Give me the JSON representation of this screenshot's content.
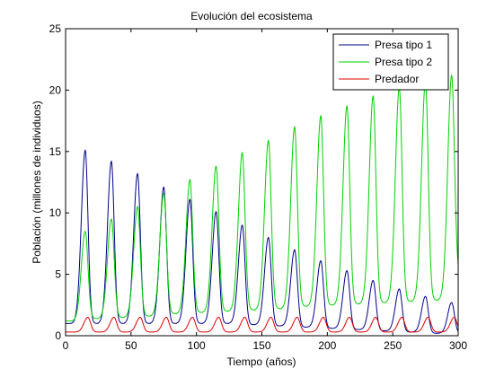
{
  "chart_data": {
    "type": "line",
    "title": "Evolución del ecosistema",
    "xlabel": "Tiempo (años)",
    "ylabel": "Población (millones de individuos)",
    "xlim": [
      0,
      300
    ],
    "ylim": [
      0,
      25
    ],
    "xticks": [
      0,
      50,
      100,
      150,
      200,
      250,
      300
    ],
    "yticks": [
      0,
      5,
      10,
      15,
      20,
      25
    ],
    "grid": false,
    "legend_position": "top-right",
    "series": [
      {
        "name": "Presa tipo 1",
        "color": "#00008b",
        "period": 20,
        "first_peak_x": 15,
        "peaks": [
          15.1,
          14.2,
          13.2,
          12.1,
          11.1,
          10.1,
          9.0,
          8.0,
          7.0,
          6.1,
          5.3,
          4.5,
          3.8,
          3.2,
          2.7
        ],
        "troughs": [
          1.0,
          1.0,
          1.0,
          1.0,
          1.0,
          1.0,
          1.0,
          0.9,
          0.8,
          0.7,
          0.6,
          0.5,
          0.4,
          0.3,
          0.2
        ]
      },
      {
        "name": "Presa tipo 2",
        "color": "#00d200",
        "period": 20,
        "first_peak_x": 15,
        "peaks": [
          8.5,
          9.5,
          10.5,
          11.6,
          12.7,
          13.8,
          14.9,
          15.9,
          17.0,
          17.9,
          18.7,
          19.5,
          20.2,
          20.7,
          21.2
        ],
        "troughs": [
          1.2,
          1.4,
          1.5,
          1.6,
          1.8,
          1.9,
          2.0,
          2.1,
          2.2,
          2.4,
          2.5,
          2.6,
          2.7,
          2.8,
          2.9,
          4.8
        ]
      },
      {
        "name": "Predador",
        "color": "#e00000",
        "period": 20,
        "first_peak_x": 17,
        "peaks": [
          1.5,
          1.5,
          1.5,
          1.5,
          1.5,
          1.5,
          1.5,
          1.5,
          1.5,
          1.5,
          1.5,
          1.5,
          1.5,
          1.5,
          1.5
        ],
        "troughs": [
          0.3,
          0.3,
          0.3,
          0.3,
          0.3,
          0.3,
          0.3,
          0.3,
          0.3,
          0.3,
          0.3,
          0.3,
          0.3,
          0.3,
          0.3,
          0.3
        ]
      }
    ]
  }
}
